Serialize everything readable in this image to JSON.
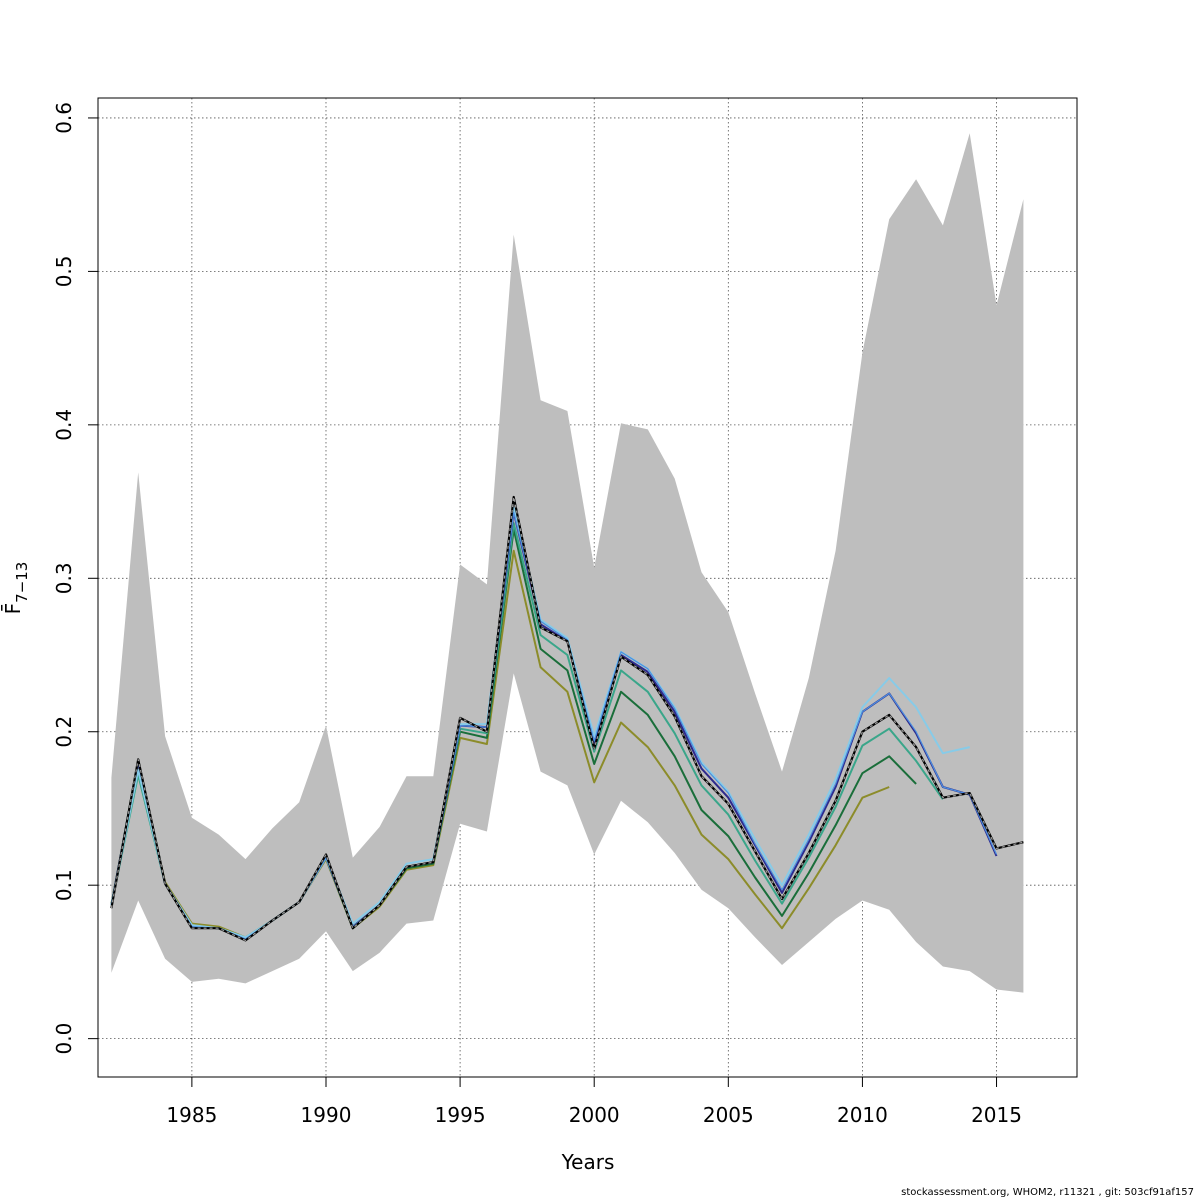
{
  "chart_data": {
    "type": "line",
    "xlabel": "Years",
    "ylabel": "F̄",
    "ylabel_subscript": "7−13",
    "xlim": [
      1981.5,
      2018
    ],
    "ylim": [
      -0.025,
      0.613
    ],
    "x_ticks": [
      1985,
      1990,
      1995,
      2000,
      2005,
      2010,
      2015
    ],
    "y_ticks": [
      "0.0",
      "0.1",
      "0.2",
      "0.3",
      "0.4",
      "0.5",
      "0.6"
    ],
    "grid": true,
    "confidence_band": {
      "color": "#bebebe",
      "x": [
        1982,
        1983,
        1984,
        1985,
        1986,
        1987,
        1988,
        1989,
        1990,
        1991,
        1992,
        1993,
        1994,
        1995,
        1996,
        1997,
        1998,
        1999,
        2000,
        2001,
        2002,
        2003,
        2004,
        2005,
        2006,
        2007,
        2008,
        2009,
        2010,
        2011,
        2012,
        2013,
        2014,
        2015,
        2016
      ],
      "upper": [
        0.17,
        0.369,
        0.197,
        0.144,
        0.133,
        0.117,
        0.137,
        0.154,
        0.204,
        0.118,
        0.138,
        0.171,
        0.171,
        0.309,
        0.296,
        0.524,
        0.416,
        0.409,
        0.307,
        0.401,
        0.397,
        0.365,
        0.304,
        0.278,
        0.225,
        0.174,
        0.235,
        0.318,
        0.447,
        0.534,
        0.56,
        0.53,
        0.59,
        0.478,
        0.547
      ],
      "lower": [
        0.043,
        0.09,
        0.052,
        0.037,
        0.039,
        0.036,
        0.044,
        0.052,
        0.07,
        0.044,
        0.056,
        0.075,
        0.077,
        0.14,
        0.135,
        0.238,
        0.174,
        0.165,
        0.12,
        0.155,
        0.141,
        0.121,
        0.097,
        0.085,
        0.066,
        0.048,
        0.063,
        0.078,
        0.09,
        0.084,
        0.063,
        0.047,
        0.044,
        0.032,
        0.03
      ]
    },
    "series": [
      {
        "color": "#8c8c2a",
        "width": 2,
        "x": [
          1982,
          1983,
          1984,
          1985,
          1986,
          1987,
          1988,
          1989,
          1990,
          1991,
          1992,
          1993,
          1994,
          1995,
          1996,
          1997,
          1998,
          1999,
          2000,
          2001,
          2002,
          2003,
          2004,
          2005,
          2006,
          2007,
          2008,
          2009,
          2010,
          2011
        ],
        "values": [
          0.088,
          0.177,
          0.102,
          0.075,
          0.073,
          0.066,
          0.077,
          0.089,
          0.117,
          0.072,
          0.086,
          0.11,
          0.113,
          0.196,
          0.192,
          0.318,
          0.242,
          0.226,
          0.167,
          0.206,
          0.19,
          0.165,
          0.133,
          0.117,
          0.094,
          0.072,
          0.098,
          0.126,
          0.157,
          0.164
        ]
      },
      {
        "color": "#1a6e3a",
        "width": 2,
        "x": [
          1982,
          1983,
          1984,
          1985,
          1986,
          1987,
          1988,
          1989,
          1990,
          1991,
          1992,
          1993,
          1994,
          1995,
          1996,
          1997,
          1998,
          1999,
          2000,
          2001,
          2002,
          2003,
          2004,
          2005,
          2006,
          2007,
          2008,
          2009,
          2010,
          2011,
          2012
        ],
        "values": [
          0.087,
          0.181,
          0.101,
          0.073,
          0.072,
          0.065,
          0.077,
          0.089,
          0.118,
          0.072,
          0.087,
          0.111,
          0.114,
          0.2,
          0.196,
          0.332,
          0.254,
          0.24,
          0.179,
          0.226,
          0.211,
          0.184,
          0.149,
          0.132,
          0.105,
          0.08,
          0.108,
          0.139,
          0.173,
          0.184,
          0.166
        ]
      },
      {
        "color": "#3aa68a",
        "width": 2,
        "x": [
          1982,
          1983,
          1984,
          1985,
          1986,
          1987,
          1988,
          1989,
          1990,
          1991,
          1992,
          1993,
          1994,
          1995,
          1996,
          1997,
          1998,
          1999,
          2000,
          2001,
          2002,
          2003,
          2004,
          2005,
          2006,
          2007,
          2008,
          2009,
          2010,
          2011,
          2012,
          2013
        ],
        "values": [
          0.087,
          0.172,
          0.101,
          0.073,
          0.072,
          0.066,
          0.077,
          0.089,
          0.118,
          0.073,
          0.087,
          0.112,
          0.115,
          0.202,
          0.199,
          0.336,
          0.263,
          0.25,
          0.187,
          0.24,
          0.226,
          0.199,
          0.165,
          0.146,
          0.116,
          0.088,
          0.118,
          0.151,
          0.191,
          0.202,
          0.181,
          0.156
        ]
      },
      {
        "color": "#2e2a8c",
        "width": 2,
        "x": [
          1982,
          1983,
          1984,
          1985,
          1986,
          1987,
          1988,
          1989,
          1990,
          1991,
          1992,
          1993,
          1994,
          1995,
          1996,
          1997,
          1998,
          1999,
          2000,
          2001,
          2002,
          2003,
          2004,
          2005,
          2006,
          2007,
          2008,
          2009,
          2010,
          2011,
          2012,
          2013,
          2014,
          2015
        ],
        "values": [
          0.087,
          0.18,
          0.101,
          0.073,
          0.072,
          0.065,
          0.077,
          0.089,
          0.118,
          0.073,
          0.087,
          0.112,
          0.115,
          0.204,
          0.203,
          0.343,
          0.27,
          0.259,
          0.193,
          0.25,
          0.239,
          0.213,
          0.176,
          0.157,
          0.126,
          0.095,
          0.128,
          0.164,
          0.213,
          0.225,
          0.199,
          0.164,
          0.159,
          0.119
        ]
      },
      {
        "color": "#87cbe8",
        "width": 2,
        "x": [
          1982,
          1983,
          1984,
          1985,
          1986,
          1987,
          1988,
          1989,
          1990,
          1991,
          1992,
          1993,
          1994,
          1995,
          1996,
          1997,
          1998,
          1999,
          2000,
          2001,
          2002,
          2003,
          2004,
          2005,
          2006,
          2007,
          2008,
          2009,
          2010,
          2011,
          2012,
          2013,
          2014
        ],
        "values": [
          0.087,
          0.175,
          0.101,
          0.074,
          0.072,
          0.066,
          0.077,
          0.089,
          0.118,
          0.075,
          0.089,
          0.114,
          0.117,
          0.205,
          0.205,
          0.346,
          0.273,
          0.261,
          0.197,
          0.252,
          0.241,
          0.216,
          0.18,
          0.161,
          0.13,
          0.1,
          0.133,
          0.169,
          0.216,
          0.235,
          0.216,
          0.186,
          0.19
        ]
      },
      {
        "color": "#4b8fe0",
        "width": 1.2,
        "x": [
          1982,
          1983,
          1984,
          1985,
          1986,
          1987,
          1988,
          1989,
          1990,
          1991,
          1992,
          1993,
          1994,
          1995,
          1996,
          1997,
          1998,
          1999,
          2000,
          2001,
          2002,
          2003,
          2004,
          2005,
          2006,
          2007,
          2008,
          2009,
          2010,
          2011,
          2012,
          2013,
          2014,
          2015
        ],
        "values": [
          0.087,
          0.18,
          0.101,
          0.073,
          0.072,
          0.065,
          0.077,
          0.089,
          0.118,
          0.073,
          0.087,
          0.112,
          0.115,
          0.204,
          0.203,
          0.343,
          0.272,
          0.26,
          0.194,
          0.252,
          0.241,
          0.215,
          0.179,
          0.16,
          0.127,
          0.097,
          0.13,
          0.166,
          0.213,
          0.225,
          0.2,
          0.164,
          0.159,
          0.12
        ]
      },
      {
        "color": "#000000",
        "width": 2,
        "dashed": true,
        "x": [
          1982,
          1983,
          1984,
          1985,
          1986,
          1987,
          1988,
          1989,
          1990,
          1991,
          1992,
          1993,
          1994,
          1995,
          1996,
          1997,
          1998,
          1999,
          2000,
          2001,
          2002,
          2003,
          2004,
          2005,
          2006,
          2007,
          2008,
          2009,
          2010,
          2011,
          2012,
          2013,
          2014,
          2015,
          2016
        ],
        "values": [
          0.085,
          0.182,
          0.101,
          0.072,
          0.072,
          0.064,
          0.077,
          0.089,
          0.12,
          0.072,
          0.087,
          0.112,
          0.115,
          0.209,
          0.2,
          0.353,
          0.268,
          0.259,
          0.189,
          0.249,
          0.237,
          0.21,
          0.171,
          0.153,
          0.122,
          0.091,
          0.121,
          0.155,
          0.2,
          0.211,
          0.19,
          0.157,
          0.16,
          0.124,
          0.128
        ]
      }
    ]
  },
  "footer": {
    "note": "stockassessment.org, WHOM2, r11321 , git: 503cf91af157"
  }
}
